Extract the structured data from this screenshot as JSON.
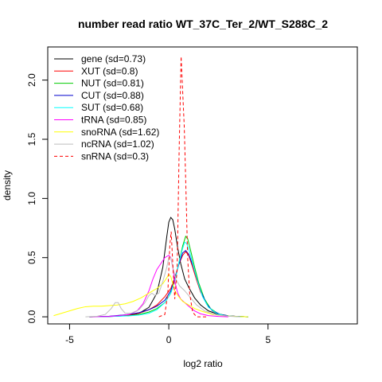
{
  "chart_data": {
    "type": "line",
    "title": "number read ratio WT_37C_Ter_2/WT_S288C_2",
    "xlabel": "log2 ratio",
    "ylabel": "density",
    "xlim": [
      -6.1,
      9.5
    ],
    "ylim": [
      -0.06,
      2.28
    ],
    "x_ticks": [
      -5,
      0,
      5
    ],
    "y_ticks": [
      0.0,
      0.5,
      1.0,
      1.5,
      2.0
    ],
    "legend_position": "top-left",
    "series": [
      {
        "name": "gene (sd=0.73)",
        "color": "#000000",
        "dash": "solid",
        "points": [
          [
            -4.0,
            0
          ],
          [
            -3.0,
            0.002
          ],
          [
            -2.0,
            0.01
          ],
          [
            -1.5,
            0.03
          ],
          [
            -1.0,
            0.08
          ],
          [
            -0.6,
            0.2
          ],
          [
            -0.3,
            0.42
          ],
          [
            -0.1,
            0.68
          ],
          [
            0.0,
            0.8
          ],
          [
            0.1,
            0.84
          ],
          [
            0.2,
            0.82
          ],
          [
            0.3,
            0.74
          ],
          [
            0.45,
            0.58
          ],
          [
            0.6,
            0.45
          ],
          [
            0.8,
            0.32
          ],
          [
            1.0,
            0.25
          ],
          [
            1.3,
            0.16
          ],
          [
            1.6,
            0.1
          ],
          [
            2.0,
            0.05
          ],
          [
            2.5,
            0.02
          ],
          [
            3.0,
            0.006
          ],
          [
            4.0,
            0
          ]
        ]
      },
      {
        "name": "XUT (sd=0.8)",
        "color": "#ff0000",
        "dash": "solid",
        "points": [
          [
            -4.0,
            0
          ],
          [
            -3.0,
            0.003
          ],
          [
            -2.0,
            0.015
          ],
          [
            -1.5,
            0.03
          ],
          [
            -1.0,
            0.06
          ],
          [
            -0.6,
            0.1
          ],
          [
            -0.2,
            0.17
          ],
          [
            0.1,
            0.24
          ],
          [
            0.3,
            0.33
          ],
          [
            0.5,
            0.44
          ],
          [
            0.7,
            0.52
          ],
          [
            0.85,
            0.55
          ],
          [
            1.0,
            0.52
          ],
          [
            1.2,
            0.42
          ],
          [
            1.4,
            0.31
          ],
          [
            1.6,
            0.21
          ],
          [
            1.9,
            0.11
          ],
          [
            2.2,
            0.05
          ],
          [
            2.6,
            0.02
          ],
          [
            3.0,
            0.008
          ],
          [
            3.5,
            0.002
          ],
          [
            4.0,
            0
          ]
        ]
      },
      {
        "name": "NUT (sd=0.81)",
        "color": "#00cc00",
        "dash": "solid",
        "points": [
          [
            -4.0,
            0
          ],
          [
            -3.0,
            0.003
          ],
          [
            -2.0,
            0.01
          ],
          [
            -1.5,
            0.02
          ],
          [
            -1.0,
            0.04
          ],
          [
            -0.6,
            0.07
          ],
          [
            -0.2,
            0.12
          ],
          [
            0.1,
            0.2
          ],
          [
            0.3,
            0.3
          ],
          [
            0.5,
            0.45
          ],
          [
            0.7,
            0.6
          ],
          [
            0.85,
            0.68
          ],
          [
            0.95,
            0.66
          ],
          [
            1.1,
            0.56
          ],
          [
            1.3,
            0.42
          ],
          [
            1.5,
            0.29
          ],
          [
            1.8,
            0.15
          ],
          [
            2.1,
            0.07
          ],
          [
            2.5,
            0.025
          ],
          [
            3.0,
            0.008
          ],
          [
            3.5,
            0.002
          ],
          [
            4.0,
            0
          ]
        ]
      },
      {
        "name": "CUT (sd=0.88)",
        "color": "#0000cc",
        "dash": "solid",
        "points": [
          [
            -4.0,
            0
          ],
          [
            -3.0,
            0.005
          ],
          [
            -2.0,
            0.02
          ],
          [
            -1.5,
            0.035
          ],
          [
            -1.0,
            0.06
          ],
          [
            -0.6,
            0.09
          ],
          [
            -0.2,
            0.14
          ],
          [
            0.1,
            0.22
          ],
          [
            0.3,
            0.32
          ],
          [
            0.5,
            0.44
          ],
          [
            0.7,
            0.54
          ],
          [
            0.85,
            0.56
          ],
          [
            1.0,
            0.53
          ],
          [
            1.2,
            0.44
          ],
          [
            1.4,
            0.33
          ],
          [
            1.6,
            0.22
          ],
          [
            1.9,
            0.11
          ],
          [
            2.2,
            0.05
          ],
          [
            2.6,
            0.02
          ],
          [
            3.0,
            0.008
          ],
          [
            3.5,
            0.002
          ],
          [
            4.0,
            0
          ]
        ]
      },
      {
        "name": "SUT (sd=0.68)",
        "color": "#00ffff",
        "dash": "solid",
        "points": [
          [
            -4.0,
            0
          ],
          [
            -3.0,
            0.002
          ],
          [
            -2.0,
            0.008
          ],
          [
            -1.5,
            0.015
          ],
          [
            -1.0,
            0.03
          ],
          [
            -0.6,
            0.06
          ],
          [
            -0.2,
            0.12
          ],
          [
            0.1,
            0.2
          ],
          [
            0.3,
            0.3
          ],
          [
            0.5,
            0.45
          ],
          [
            0.7,
            0.58
          ],
          [
            0.8,
            0.63
          ],
          [
            0.9,
            0.62
          ],
          [
            1.05,
            0.55
          ],
          [
            1.25,
            0.42
          ],
          [
            1.45,
            0.3
          ],
          [
            1.7,
            0.17
          ],
          [
            2.0,
            0.08
          ],
          [
            2.4,
            0.03
          ],
          [
            2.8,
            0.01
          ],
          [
            3.3,
            0.003
          ],
          [
            4.0,
            0
          ]
        ]
      },
      {
        "name": "tRNA (sd=0.85)",
        "color": "#ff00ff",
        "dash": "solid",
        "points": [
          [
            -4.0,
            0
          ],
          [
            -3.0,
            0.003
          ],
          [
            -2.5,
            0.01
          ],
          [
            -2.0,
            0.02
          ],
          [
            -1.6,
            0.05
          ],
          [
            -1.3,
            0.11
          ],
          [
            -1.0,
            0.22
          ],
          [
            -0.8,
            0.32
          ],
          [
            -0.6,
            0.4
          ],
          [
            -0.4,
            0.45
          ],
          [
            -0.2,
            0.5
          ],
          [
            0.0,
            0.52
          ],
          [
            0.1,
            0.5
          ],
          [
            0.2,
            0.42
          ],
          [
            0.3,
            0.3
          ],
          [
            0.45,
            0.2
          ],
          [
            0.6,
            0.15
          ],
          [
            0.8,
            0.12
          ],
          [
            1.0,
            0.09
          ],
          [
            1.3,
            0.05
          ],
          [
            1.6,
            0.025
          ],
          [
            2.0,
            0.01
          ],
          [
            2.5,
            0.003
          ],
          [
            3.0,
            0
          ]
        ]
      },
      {
        "name": "snoRNA (sd=1.62)",
        "color": "#ffff00",
        "dash": "solid",
        "points": [
          [
            -5.8,
            0.01
          ],
          [
            -5.4,
            0.03
          ],
          [
            -5.0,
            0.05
          ],
          [
            -4.6,
            0.07
          ],
          [
            -4.2,
            0.085
          ],
          [
            -3.8,
            0.09
          ],
          [
            -3.4,
            0.09
          ],
          [
            -3.0,
            0.095
          ],
          [
            -2.6,
            0.1
          ],
          [
            -2.2,
            0.11
          ],
          [
            -1.8,
            0.13
          ],
          [
            -1.4,
            0.16
          ],
          [
            -1.0,
            0.2
          ],
          [
            -0.6,
            0.24
          ],
          [
            -0.3,
            0.28
          ],
          [
            -0.1,
            0.33
          ],
          [
            0.0,
            0.36
          ],
          [
            0.1,
            0.34
          ],
          [
            0.2,
            0.28
          ],
          [
            0.3,
            0.22
          ],
          [
            0.5,
            0.17
          ],
          [
            0.7,
            0.13
          ],
          [
            1.0,
            0.1
          ],
          [
            1.3,
            0.07
          ],
          [
            1.7,
            0.045
          ],
          [
            2.2,
            0.02
          ],
          [
            2.8,
            0.008
          ],
          [
            3.5,
            0.002
          ],
          [
            4.0,
            0
          ]
        ]
      },
      {
        "name": "ncRNA (sd=1.02)",
        "color": "#bebebe",
        "dash": "solid",
        "points": [
          [
            -4.2,
            0
          ],
          [
            -3.6,
            0.005
          ],
          [
            -3.2,
            0.02
          ],
          [
            -2.9,
            0.07
          ],
          [
            -2.7,
            0.12
          ],
          [
            -2.55,
            0.12
          ],
          [
            -2.4,
            0.07
          ],
          [
            -2.2,
            0.03
          ],
          [
            -1.9,
            0.03
          ],
          [
            -1.5,
            0.06
          ],
          [
            -1.2,
            0.12
          ],
          [
            -1.0,
            0.18
          ],
          [
            -0.85,
            0.2
          ],
          [
            -0.7,
            0.18
          ],
          [
            -0.5,
            0.2
          ],
          [
            -0.3,
            0.3
          ],
          [
            -0.1,
            0.42
          ],
          [
            0.0,
            0.5
          ],
          [
            0.1,
            0.5
          ],
          [
            0.2,
            0.42
          ],
          [
            0.35,
            0.32
          ],
          [
            0.55,
            0.26
          ],
          [
            0.8,
            0.22
          ],
          [
            1.1,
            0.16
          ],
          [
            1.4,
            0.1
          ],
          [
            1.8,
            0.05
          ],
          [
            2.3,
            0.02
          ],
          [
            3.0,
            0.005
          ],
          [
            3.6,
            0
          ]
        ]
      },
      {
        "name": "snRNA (sd=0.3)",
        "color": "#ff0000",
        "dash": "dashed",
        "points": [
          [
            -0.5,
            0
          ],
          [
            -0.2,
            0.02
          ],
          [
            -0.05,
            0.2
          ],
          [
            0.05,
            0.6
          ],
          [
            0.12,
            0.72
          ],
          [
            0.2,
            0.45
          ],
          [
            0.3,
            0.15
          ],
          [
            0.42,
            0.4
          ],
          [
            0.52,
            1.4
          ],
          [
            0.62,
            2.2
          ],
          [
            0.7,
            1.9
          ],
          [
            0.78,
            1.6
          ],
          [
            0.86,
            1.1
          ],
          [
            0.95,
            0.5
          ],
          [
            1.05,
            0.2
          ],
          [
            1.2,
            0.04
          ],
          [
            1.4,
            0
          ],
          [
            2.0,
            0
          ]
        ]
      }
    ]
  }
}
